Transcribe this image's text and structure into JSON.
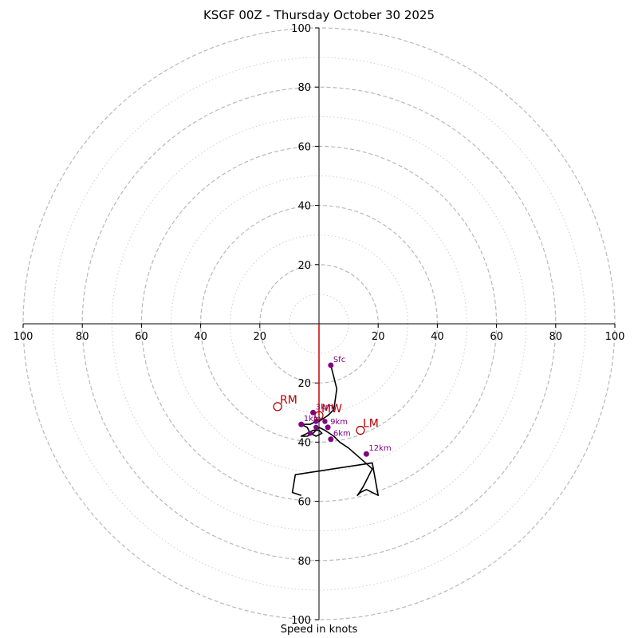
{
  "chart_data": {
    "type": "hodograph",
    "title": "KSGF 00Z - Thursday October 30 2025",
    "xlabel": "Speed in knots",
    "speed_unit": "knots",
    "range": [
      -100,
      100
    ],
    "ring_major_step": 20,
    "ring_minor_step": 10,
    "tick_labels": {
      "x": [
        "100",
        "80",
        "60",
        "40",
        "20",
        "20",
        "40",
        "60",
        "80",
        "100"
      ],
      "y": [
        "100",
        "80",
        "60",
        "40",
        "20",
        "20",
        "40",
        "60",
        "80",
        "100"
      ]
    },
    "hodograph": {
      "u": [
        4,
        5,
        6,
        5,
        3,
        0,
        -1,
        -3,
        -6,
        -4,
        -3,
        -1,
        1,
        0,
        -2,
        -4,
        -6,
        -6,
        -4,
        -2,
        -1,
        0,
        2,
        5,
        7,
        10,
        18,
        15,
        13,
        14,
        16,
        20,
        18,
        -8,
        -9,
        -6
      ],
      "v": [
        -14,
        -18,
        -22,
        -29,
        -31,
        -33,
        -33,
        -34,
        -34,
        -35,
        -37,
        -38,
        -37,
        -36,
        -36,
        -37,
        -38,
        -38,
        -38,
        -37,
        -36,
        -35,
        -36,
        -38,
        -40,
        -42,
        -49,
        -55,
        -58,
        -57,
        -56,
        -58,
        -47,
        -51,
        -57,
        -58
      ],
      "color": "#000000"
    },
    "heights": [
      {
        "label": "Sfc",
        "u": 4,
        "v": -14
      },
      {
        "label": "1km",
        "u": -6,
        "v": -34
      },
      {
        "label": "3km",
        "u": -2,
        "v": -30
      },
      {
        "label": "6km",
        "u": 4,
        "v": -39
      },
      {
        "label": "9km",
        "u": 3,
        "v": -35
      },
      {
        "label": "12km",
        "u": 16,
        "v": -44
      }
    ],
    "extra_markers": [
      {
        "u": -1,
        "v": -35
      },
      {
        "u": -3,
        "v": -37
      },
      {
        "u": -1,
        "v": -33
      },
      {
        "u": 2,
        "v": -33
      }
    ],
    "height_color": "#800080",
    "storm_motion": [
      {
        "label": "RM",
        "u": -14,
        "v": -28
      },
      {
        "label": "LM",
        "u": 14,
        "v": -36
      },
      {
        "label": "MW",
        "u": 0,
        "v": -31
      }
    ],
    "storm_motion_color": "#b00000",
    "shear_vector": {
      "u": 0,
      "v": -31,
      "color": "#d00000"
    },
    "grid": true
  }
}
